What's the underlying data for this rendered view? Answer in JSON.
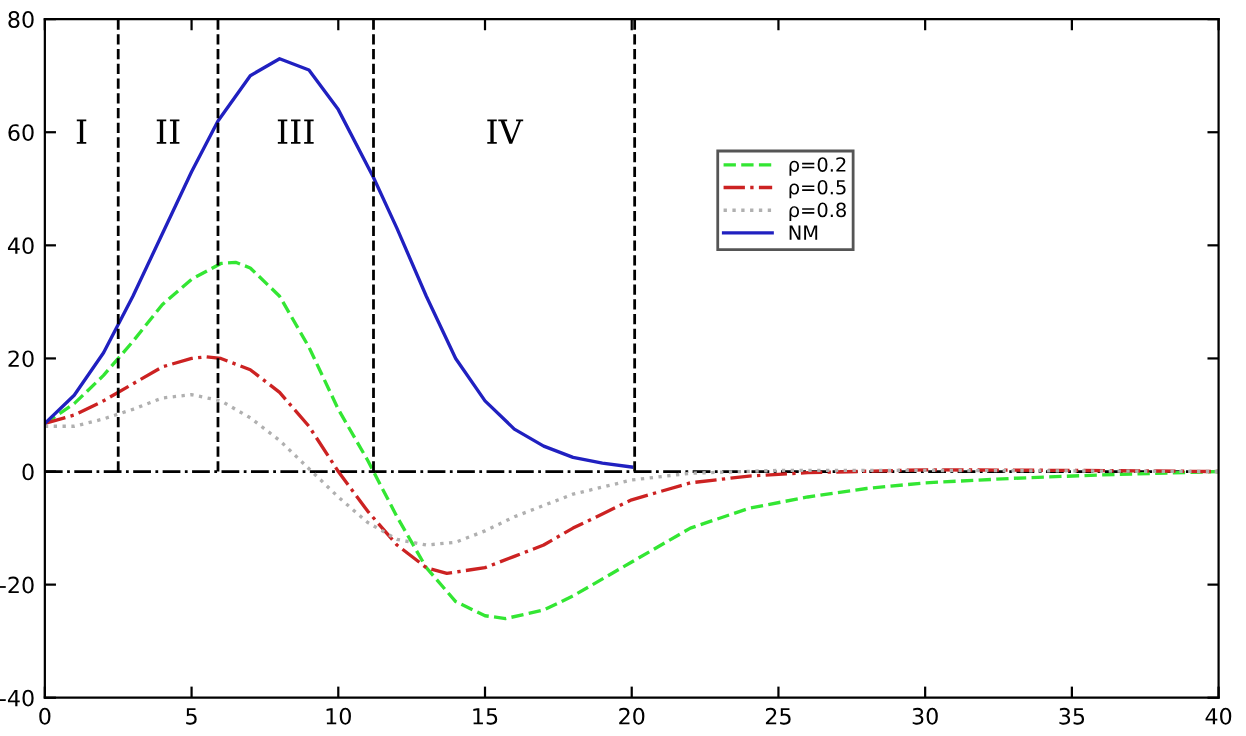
{
  "chart_data": {
    "type": "line",
    "xlim": [
      0,
      40
    ],
    "ylim": [
      -40,
      80
    ],
    "xticks": [
      0,
      5,
      10,
      15,
      20,
      25,
      30,
      35,
      40
    ],
    "yticks": [
      -40,
      -20,
      0,
      20,
      40,
      60,
      80
    ],
    "grid": false,
    "legend": "top right",
    "marker": "none",
    "series": [
      {
        "name": "ρ=0.2",
        "color": "#33e633",
        "line_style": "dashed",
        "x": [
          0,
          1,
          2,
          3,
          4,
          5,
          6,
          6.5,
          7,
          8,
          9,
          10,
          11,
          12,
          13,
          14,
          15,
          15.7,
          17,
          18,
          20,
          22,
          24,
          26,
          28,
          30,
          33,
          36,
          40
        ],
        "values": [
          8.5,
          12,
          17,
          23,
          29.5,
          34,
          36.8,
          37,
          36,
          31,
          22,
          11,
          2,
          -8,
          -17,
          -23,
          -25.5,
          -26,
          -24.5,
          -22,
          -16,
          -10,
          -6.5,
          -4.5,
          -3,
          -2,
          -1.2,
          -0.6,
          0
        ]
      },
      {
        "name": "ρ=0.5",
        "color": "#cc2222",
        "line_style": "dashdot",
        "x": [
          0,
          1,
          2,
          3,
          4,
          5,
          5.5,
          6,
          7,
          8,
          9,
          10,
          11,
          12,
          13,
          13.7,
          15,
          16,
          17,
          18,
          20,
          22,
          24,
          26,
          30,
          35,
          40
        ],
        "values": [
          8.5,
          10,
          12.5,
          15.5,
          18.5,
          20,
          20.3,
          20,
          18,
          14,
          8,
          0,
          -7,
          -13,
          -17,
          -18,
          -17,
          -15,
          -13,
          -10,
          -5,
          -2,
          -0.8,
          -0.2,
          0.3,
          0.2,
          0
        ]
      },
      {
        "name": "ρ=0.8",
        "color": "#b0b0b0",
        "line_style": "dotted",
        "x": [
          0,
          1,
          2,
          3,
          4,
          5,
          6,
          7,
          8,
          9,
          10,
          11,
          12,
          13,
          14,
          15,
          16,
          17,
          18,
          20,
          22,
          25,
          30,
          40
        ],
        "values": [
          8,
          8,
          9.3,
          11,
          13,
          13.6,
          12.5,
          9.5,
          5.5,
          0.5,
          -4.5,
          -9,
          -12,
          -13,
          -12.5,
          -10.5,
          -8,
          -6,
          -4,
          -1.5,
          -0.3,
          0.2,
          0.2,
          0
        ]
      },
      {
        "name": "NM",
        "color": "#2020c0",
        "line_style": "solid",
        "x": [
          0,
          1,
          2,
          2.5,
          3,
          4,
          5,
          5.9,
          7,
          8,
          9,
          10,
          11.2,
          12,
          13,
          14,
          15,
          16,
          17,
          18,
          19,
          20
        ],
        "values": [
          8.5,
          13.5,
          21,
          26,
          31,
          42,
          53,
          62,
          70,
          73,
          71,
          64,
          52,
          43,
          31,
          20,
          12.5,
          7.5,
          4.5,
          2.5,
          1.5,
          0.8
        ]
      }
    ],
    "ref_lines": [
      {
        "axis": "y",
        "value": 0,
        "color": "#000000",
        "line_style": "dashdot"
      },
      {
        "axis": "x",
        "value": 2.5,
        "color": "#000000",
        "line_style": "dashed"
      },
      {
        "axis": "x",
        "value": 5.9,
        "color": "#000000",
        "line_style": "dashed"
      },
      {
        "axis": "x",
        "value": 11.2,
        "color": "#000000",
        "line_style": "dashed"
      },
      {
        "axis": "x",
        "value": 20.1,
        "color": "#000000",
        "line_style": "dashed"
      }
    ],
    "annotations": [
      "I",
      "II",
      "III",
      "IV"
    ]
  }
}
